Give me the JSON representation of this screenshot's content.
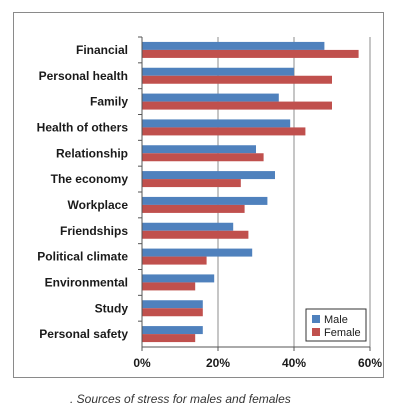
{
  "caption": ". Sources of stress for males and females",
  "colors": {
    "male": "#4f81bd",
    "female": "#c0504d",
    "grid": "#8c8c8c",
    "axis": "#555555"
  },
  "chart_data": {
    "type": "bar",
    "orientation": "horizontal",
    "title": "",
    "xlabel": "",
    "ylabel": "",
    "xlim": [
      0,
      60
    ],
    "x_ticks": [
      "0%",
      "20%",
      "40%",
      "60%"
    ],
    "x_tick_values": [
      0,
      20,
      40,
      60
    ],
    "grid": true,
    "legend_position": "bottom-right",
    "categories": [
      "Financial",
      "Personal health",
      "Family",
      "Health of others",
      "Relationship",
      "The economy",
      "Workplace",
      "Friendships",
      "Political climate",
      "Environmental",
      "Study",
      "Personal safety"
    ],
    "series": [
      {
        "name": "Male",
        "values": [
          48,
          40,
          36,
          39,
          30,
          35,
          33,
          24,
          29,
          19,
          16,
          16
        ]
      },
      {
        "name": "Female",
        "values": [
          57,
          50,
          50,
          43,
          32,
          26,
          27,
          28,
          17,
          14,
          16,
          14
        ]
      }
    ]
  }
}
